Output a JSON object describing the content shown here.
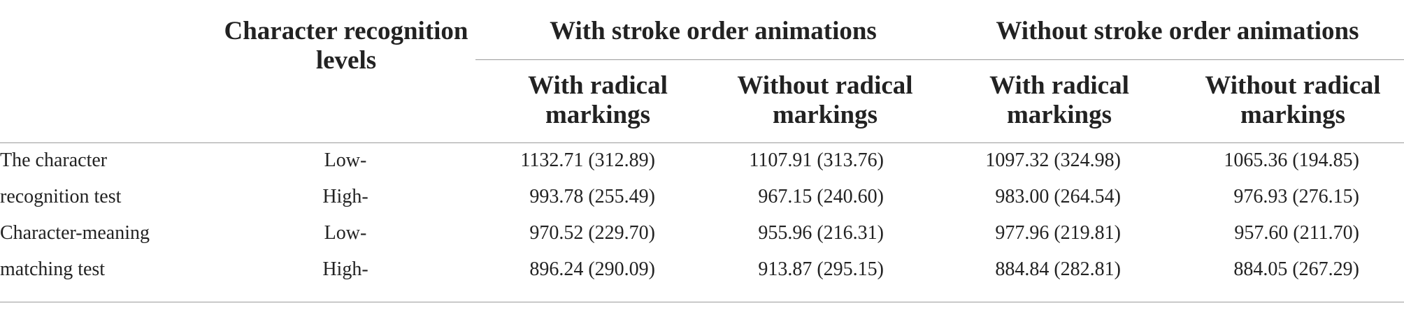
{
  "table": {
    "headers": {
      "levels": "Character recognition levels",
      "with_anim": "With stroke order animations",
      "without_anim": "Without stroke order animations",
      "sub": [
        "With radical markings",
        "Without radical markings",
        "With radical markings",
        "Without radical markings"
      ]
    },
    "rows": [
      {
        "test": "The character",
        "level": "Low-",
        "values": [
          "1132.71 (312.89)",
          "1107.91 (313.76)",
          "1097.32 (324.98)",
          "1065.36 (194.85)"
        ]
      },
      {
        "test": "recognition test",
        "level": "High-",
        "values": [
          "993.78 (255.49)",
          "967.15 (240.60)",
          "983.00 (264.54)",
          "976.93 (276.15)"
        ]
      },
      {
        "test": "Character-meaning",
        "level": "Low-",
        "values": [
          "970.52 (229.70)",
          "955.96 (216.31)",
          "977.96 (219.81)",
          "957.60 (211.70)"
        ]
      },
      {
        "test": "matching test",
        "level": "High-",
        "values": [
          "896.24 (290.09)",
          "913.87 (295.15)",
          "884.84 (282.81)",
          "884.05 (267.29)"
        ]
      }
    ]
  }
}
